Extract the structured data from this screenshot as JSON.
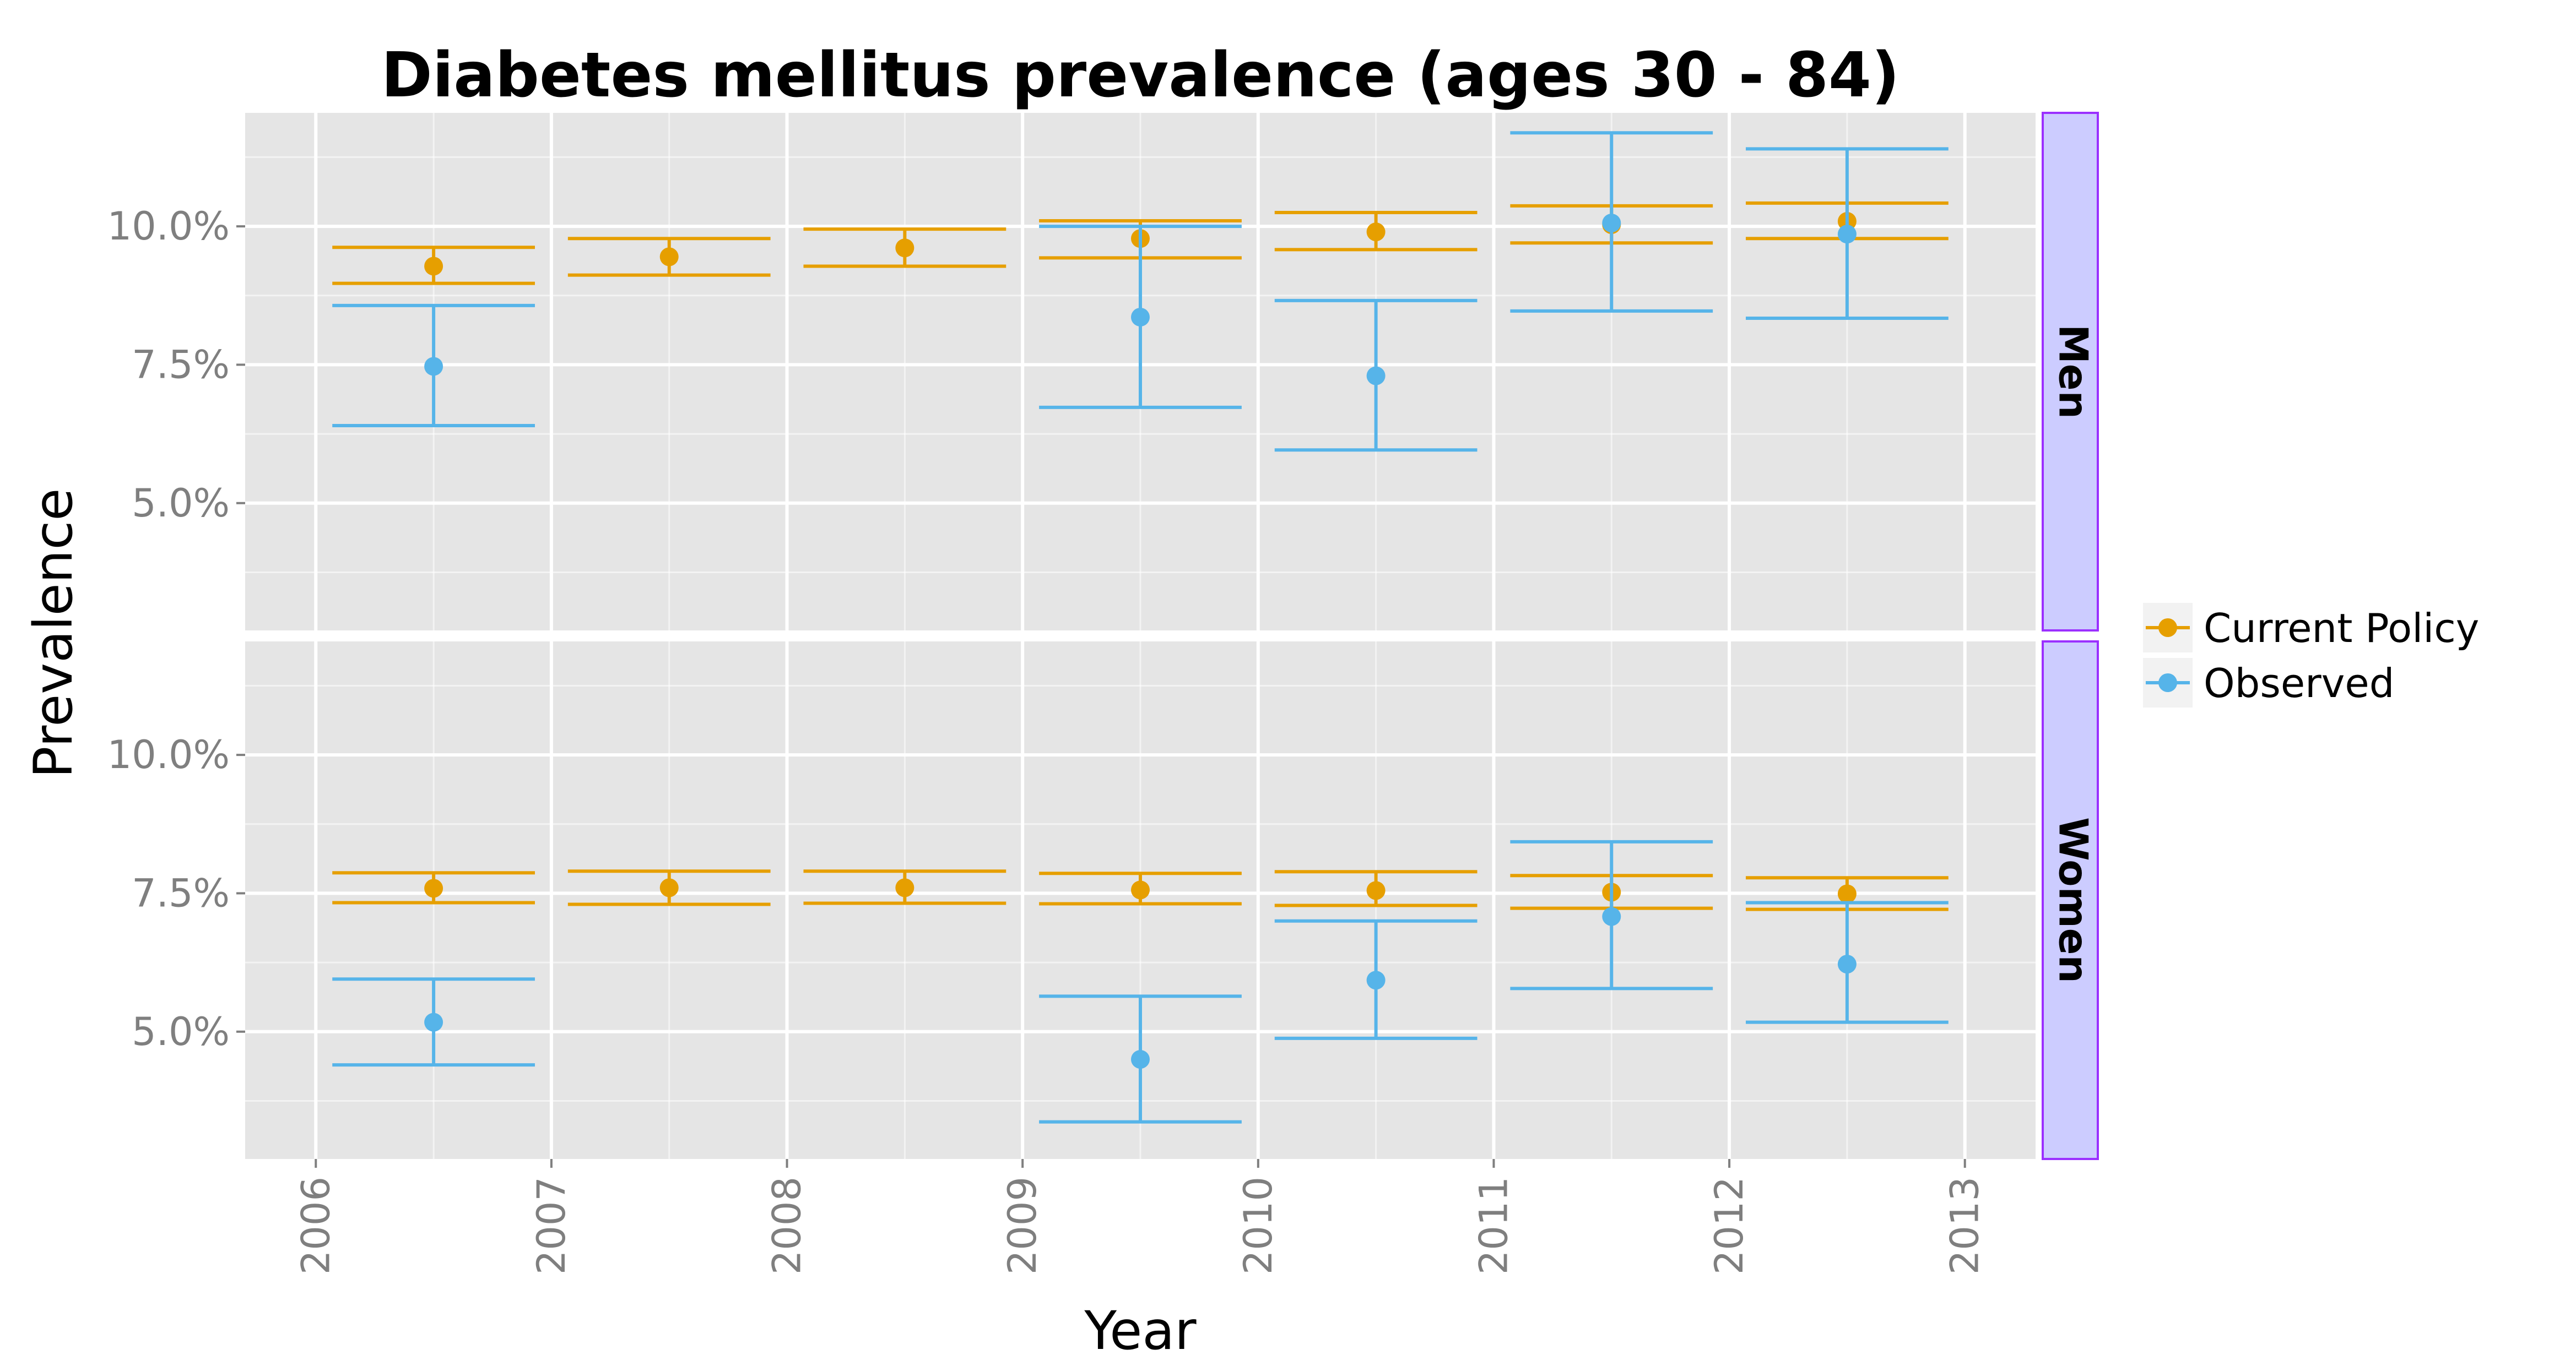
{
  "chart_data": {
    "type": "scatter",
    "title": "Diabetes mellitus prevalence (ages 30 - 84)",
    "xlabel": "Year",
    "ylabel": "Prevalence",
    "xlim": [
      2005.7,
      2013.3
    ],
    "x_ticks": [
      2006,
      2007,
      2008,
      2009,
      2010,
      2011,
      2012,
      2013
    ],
    "x_tick_labels": [
      "2006",
      "2007",
      "2008",
      "2009",
      "2010",
      "2011",
      "2012",
      "2013"
    ],
    "ylim": [
      0.027,
      0.1205
    ],
    "y_ticks": [
      0.05,
      0.075,
      0.1
    ],
    "y_tick_labels": [
      "5.0%",
      "7.5%",
      "10.0%"
    ],
    "grid": true,
    "legend_position": "right",
    "panels": [
      {
        "label": "Men",
        "series": [
          {
            "name": "Current Policy",
            "color": "#E69F00",
            "points": [
              {
                "x": 2006.5,
                "y": 0.0928,
                "lo": 0.0897,
                "hi": 0.0962
              },
              {
                "x": 2007.5,
                "y": 0.0945,
                "lo": 0.0912,
                "hi": 0.0978
              },
              {
                "x": 2008.5,
                "y": 0.0961,
                "lo": 0.0928,
                "hi": 0.0995
              },
              {
                "x": 2009.5,
                "y": 0.0978,
                "lo": 0.0943,
                "hi": 0.101
              },
              {
                "x": 2010.5,
                "y": 0.099,
                "lo": 0.0958,
                "hi": 0.1025
              },
              {
                "x": 2011.5,
                "y": 0.1003,
                "lo": 0.097,
                "hi": 0.1037
              },
              {
                "x": 2012.5,
                "y": 0.1009,
                "lo": 0.0978,
                "hi": 0.1042
              }
            ]
          },
          {
            "name": "Observed",
            "color": "#56B4E9",
            "points": [
              {
                "x": 2006.5,
                "y": 0.0747,
                "lo": 0.064,
                "hi": 0.0857
              },
              {
                "x": 2009.5,
                "y": 0.0836,
                "lo": 0.0673,
                "hi": 0.1
              },
              {
                "x": 2010.5,
                "y": 0.073,
                "lo": 0.0596,
                "hi": 0.0866
              },
              {
                "x": 2011.5,
                "y": 0.1006,
                "lo": 0.0847,
                "hi": 0.1169
              },
              {
                "x": 2012.5,
                "y": 0.0986,
                "lo": 0.0834,
                "hi": 0.114
              }
            ]
          }
        ]
      },
      {
        "label": "Women",
        "series": [
          {
            "name": "Current Policy",
            "color": "#E69F00",
            "points": [
              {
                "x": 2006.5,
                "y": 0.0759,
                "lo": 0.0733,
                "hi": 0.0787
              },
              {
                "x": 2007.5,
                "y": 0.076,
                "lo": 0.073,
                "hi": 0.079
              },
              {
                "x": 2008.5,
                "y": 0.076,
                "lo": 0.0732,
                "hi": 0.079
              },
              {
                "x": 2009.5,
                "y": 0.0756,
                "lo": 0.0731,
                "hi": 0.0786
              },
              {
                "x": 2010.5,
                "y": 0.0755,
                "lo": 0.0728,
                "hi": 0.0789
              },
              {
                "x": 2011.5,
                "y": 0.0752,
                "lo": 0.0723,
                "hi": 0.0782
              },
              {
                "x": 2012.5,
                "y": 0.0749,
                "lo": 0.0721,
                "hi": 0.0778
              }
            ]
          },
          {
            "name": "Observed",
            "color": "#56B4E9",
            "points": [
              {
                "x": 2006.5,
                "y": 0.0517,
                "lo": 0.044,
                "hi": 0.0595
              },
              {
                "x": 2009.5,
                "y": 0.045,
                "lo": 0.0337,
                "hi": 0.0564
              },
              {
                "x": 2010.5,
                "y": 0.0593,
                "lo": 0.0488,
                "hi": 0.07
              },
              {
                "x": 2011.5,
                "y": 0.0708,
                "lo": 0.0578,
                "hi": 0.0843
              },
              {
                "x": 2012.5,
                "y": 0.0622,
                "lo": 0.0517,
                "hi": 0.0733
              }
            ]
          }
        ]
      }
    ],
    "legend": [
      {
        "name": "Current Policy",
        "color": "#E69F00"
      },
      {
        "name": "Observed",
        "color": "#56B4E9"
      }
    ],
    "colors": {
      "panel_background": "#E5E5E5",
      "grid": "#FFFFFF",
      "strip_background": "#CCCCFF",
      "strip_border": "#9B30FF"
    }
  }
}
